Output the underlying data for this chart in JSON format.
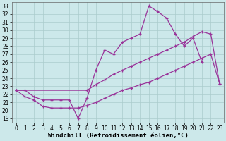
{
  "xlabel": "Windchill (Refroidissement éolien,°C)",
  "bg_color": "#cce8ea",
  "line_color": "#993399",
  "xlim": [
    -0.5,
    23.5
  ],
  "ylim": [
    18.5,
    33.5
  ],
  "xticks": [
    0,
    1,
    2,
    3,
    4,
    5,
    6,
    7,
    8,
    9,
    10,
    11,
    12,
    13,
    14,
    15,
    16,
    17,
    18,
    19,
    20,
    21,
    22,
    23
  ],
  "yticks": [
    19,
    20,
    21,
    22,
    23,
    24,
    25,
    26,
    27,
    28,
    29,
    30,
    31,
    32,
    33
  ],
  "line1_x": [
    0,
    1,
    2,
    3,
    4,
    5,
    6,
    7,
    8,
    9,
    10,
    11,
    12,
    13,
    14,
    15,
    16,
    17,
    18,
    19,
    20,
    21
  ],
  "line1_y": [
    22.5,
    22.5,
    21.7,
    21.3,
    21.3,
    21.3,
    21.3,
    19.0,
    21.5,
    25.0,
    27.5,
    27.0,
    28.5,
    29.0,
    29.5,
    33.0,
    32.3,
    31.5,
    29.5,
    28.0,
    29.0,
    26.0
  ],
  "line2_x": [
    0,
    8,
    9,
    10,
    11,
    12,
    13,
    14,
    15,
    16,
    17,
    18,
    19,
    20,
    21,
    22,
    23
  ],
  "line2_y": [
    22.5,
    22.5,
    23.2,
    23.8,
    24.5,
    25.0,
    25.5,
    26.0,
    26.5,
    27.0,
    27.5,
    28.0,
    28.5,
    29.2,
    29.8,
    29.5,
    23.3
  ],
  "line3_x": [
    0,
    1,
    2,
    3,
    4,
    5,
    6,
    7,
    8,
    9,
    10,
    11,
    12,
    13,
    14,
    15,
    16,
    17,
    18,
    19,
    20,
    21,
    22,
    23
  ],
  "line3_y": [
    22.5,
    21.7,
    21.3,
    20.5,
    20.3,
    20.3,
    20.3,
    20.3,
    20.6,
    21.0,
    21.5,
    22.0,
    22.5,
    22.8,
    23.2,
    23.5,
    24.0,
    24.5,
    25.0,
    25.5,
    26.0,
    26.5,
    27.0,
    23.3
  ],
  "grid_color": "#aacccc",
  "tick_fontsize": 5.5,
  "xlabel_fontsize": 6.5,
  "lw": 0.9,
  "ms": 3.5
}
